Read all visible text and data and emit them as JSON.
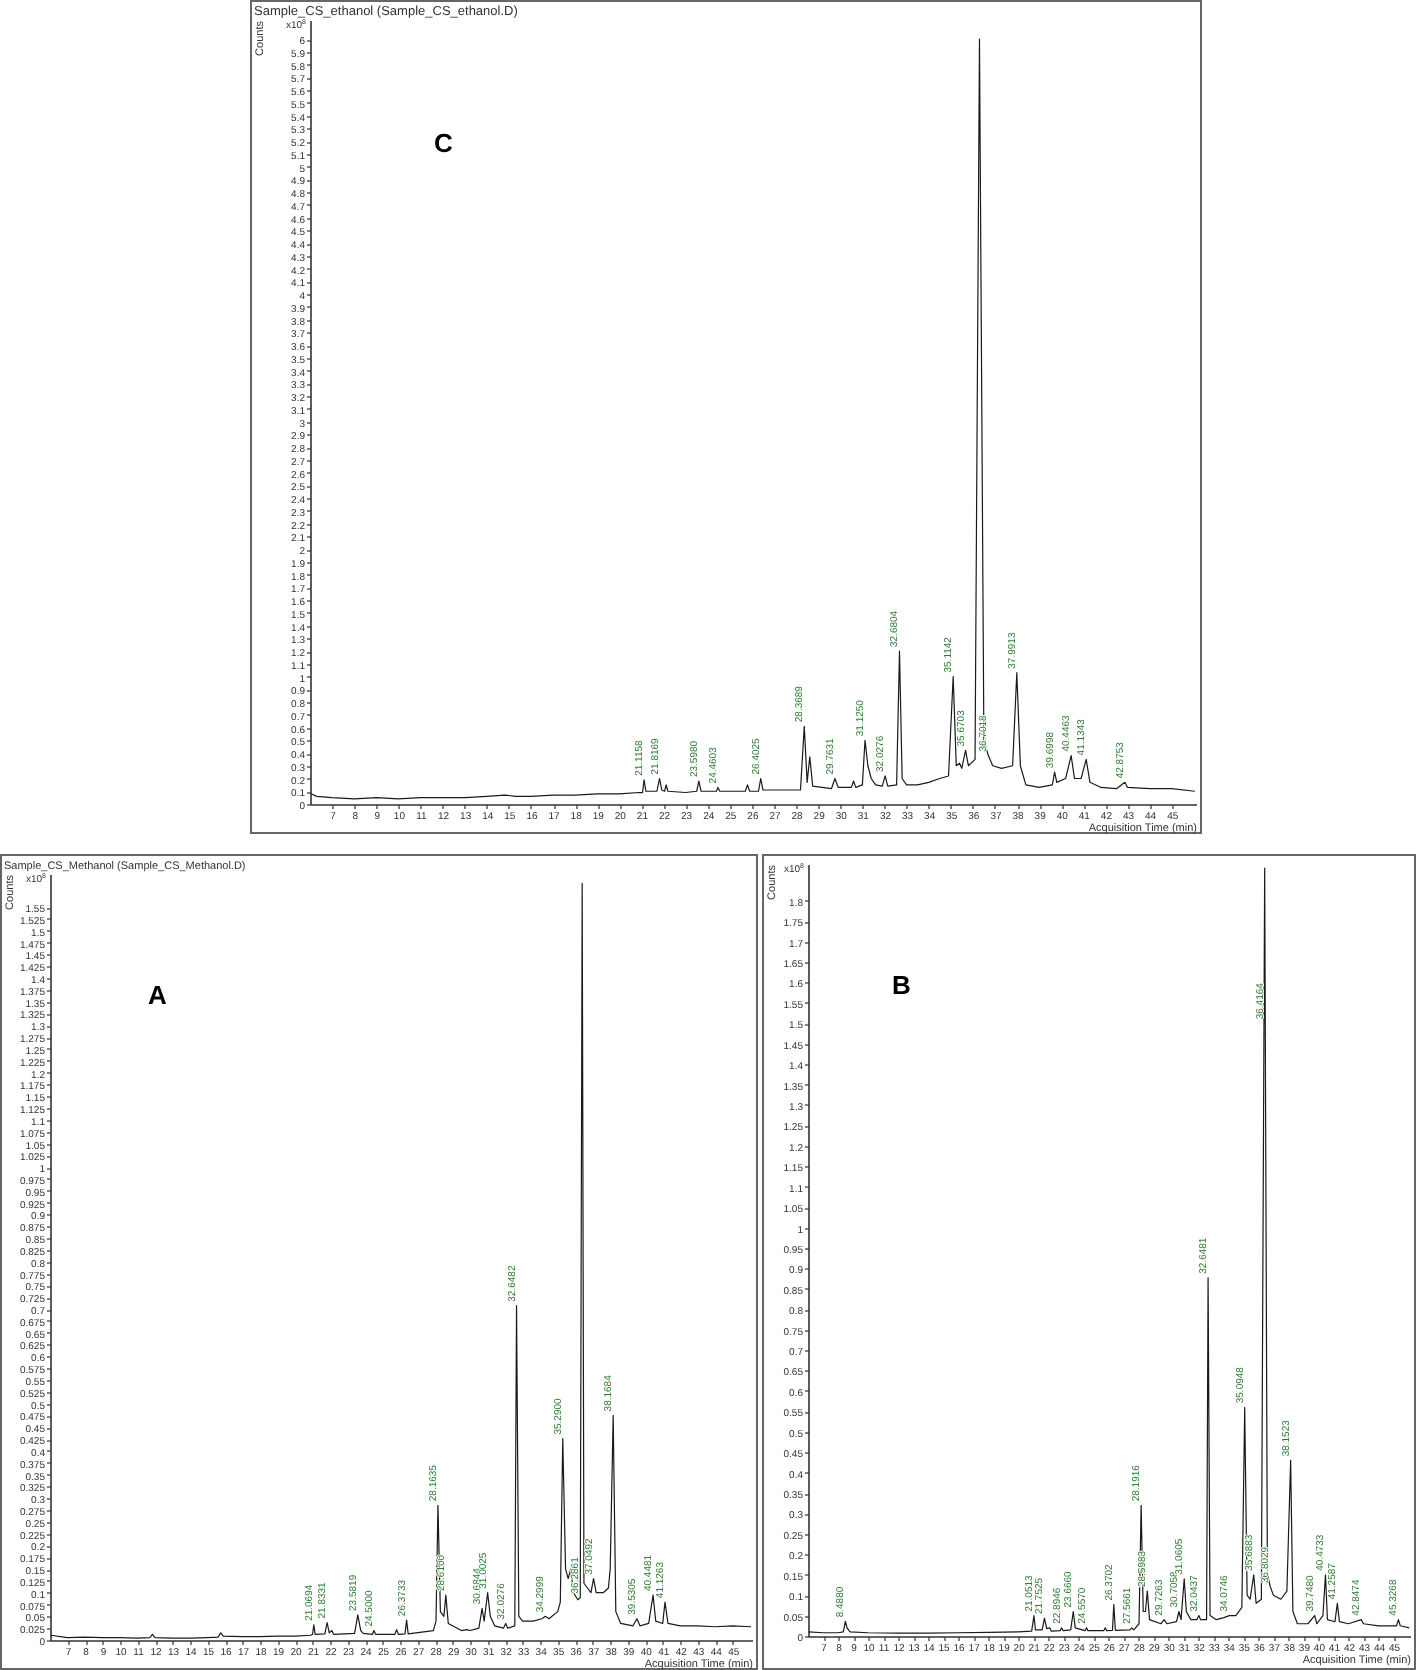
{
  "chart_data": [
    {
      "type": "line",
      "title": "Sample_CS_ethanol (Sample_CS_ethanol.D)",
      "xlabel": "Acquisition Time (min)",
      "ylabel": "Counts",
      "annotations": [
        "x10$^{8}$",
        "C",
        {
          "text": "21.1158",
          "x": 21.12,
          "y": 0.19
        },
        {
          "text": "21.8169",
          "x": 21.82,
          "y": 0.2
        },
        {
          "text": "23.5980",
          "x": 23.6,
          "y": 0.18
        },
        {
          "text": "24.4603",
          "x": 24.46,
          "y": 0.13
        },
        {
          "text": "26.4025",
          "x": 26.4,
          "y": 0.2
        },
        {
          "text": "28.3689",
          "x": 28.37,
          "y": 0.61
        },
        {
          "text": "29.7631",
          "x": 29.76,
          "y": 0.2
        },
        {
          "text": "31.1250",
          "x": 31.12,
          "y": 0.5
        },
        {
          "text": "32.0276",
          "x": 32.03,
          "y": 0.22
        },
        {
          "text": "32.6804",
          "x": 32.68,
          "y": 1.2
        },
        {
          "text": "35.1142",
          "x": 35.11,
          "y": 1.0
        },
        {
          "text": "35.6703",
          "x": 35.67,
          "y": 0.42
        },
        {
          "text": "36.7018",
          "x": 36.7,
          "y": 0.38
        },
        {
          "text": "37.9913",
          "x": 37.99,
          "y": 1.03
        },
        {
          "text": "39.6998",
          "x": 39.7,
          "y": 0.25
        },
        {
          "text": "40.4463",
          "x": 40.45,
          "y": 0.38
        },
        {
          "text": "41.1343",
          "x": 41.13,
          "y": 0.35
        },
        {
          "text": "42.8753",
          "x": 42.88,
          "y": 0.17
        }
      ],
      "x": [
        6.05,
        6.3,
        7,
        8,
        9,
        10,
        11,
        12,
        13,
        14,
        14.8,
        15.3,
        16,
        17,
        18,
        19,
        20,
        20.9,
        21.05,
        21.12,
        21.2,
        21.7,
        21.82,
        21.92,
        22.05,
        22.12,
        22.2,
        23,
        23.5,
        23.6,
        23.7,
        24.4,
        24.46,
        24.55,
        25.7,
        25.8,
        25.9,
        26.3,
        26.4,
        26.5,
        28.2,
        28.37,
        28.5,
        28.62,
        28.75,
        29.6,
        29.76,
        29.9,
        30.5,
        30.6,
        30.7,
        31.0,
        31.12,
        31.25,
        31.4,
        31.6,
        31.9,
        32.03,
        32.15,
        32.55,
        32.68,
        32.8,
        33,
        33.5,
        34,
        34.5,
        34.9,
        35.11,
        35.25,
        35.4,
        35.5,
        35.67,
        35.8,
        36.1,
        36.3,
        36.5,
        36.7,
        36.9,
        37.3,
        37.8,
        37.99,
        38.15,
        38.4,
        39,
        39.6,
        39.7,
        39.8,
        40.2,
        40.45,
        40.6,
        40.9,
        41.13,
        41.3,
        41.8,
        42.5,
        42.88,
        43,
        44,
        45,
        46.05
      ],
      "series": [
        {
          "color": "#1a1a1a",
          "values": [
            0.08,
            0.06,
            0.05,
            0.04,
            0.05,
            0.04,
            0.05,
            0.05,
            0.05,
            0.06,
            0.07,
            0.06,
            0.06,
            0.07,
            0.07,
            0.08,
            0.08,
            0.09,
            0.09,
            0.19,
            0.1,
            0.1,
            0.2,
            0.11,
            0.1,
            0.15,
            0.1,
            0.09,
            0.1,
            0.18,
            0.1,
            0.1,
            0.13,
            0.1,
            0.1,
            0.15,
            0.1,
            0.1,
            0.2,
            0.11,
            0.11,
            0.61,
            0.17,
            0.37,
            0.14,
            0.12,
            0.2,
            0.13,
            0.13,
            0.18,
            0.13,
            0.15,
            0.5,
            0.3,
            0.2,
            0.15,
            0.14,
            0.22,
            0.14,
            0.15,
            1.2,
            0.2,
            0.15,
            0.15,
            0.17,
            0.2,
            0.22,
            1.0,
            0.3,
            0.32,
            0.28,
            0.42,
            0.3,
            0.35,
            6.0,
            0.5,
            0.38,
            0.3,
            0.28,
            0.3,
            1.03,
            0.3,
            0.15,
            0.13,
            0.15,
            0.25,
            0.17,
            0.2,
            0.38,
            0.2,
            0.2,
            0.35,
            0.17,
            0.13,
            0.12,
            0.17,
            0.13,
            0.12,
            0.12,
            0.1
          ]
        }
      ],
      "xlim": [
        6,
        46.1
      ],
      "xticks": [
        7,
        8,
        9,
        10,
        11,
        12,
        13,
        14,
        15,
        16,
        17,
        18,
        19,
        20,
        21,
        22,
        23,
        24,
        25,
        26,
        27,
        28,
        29,
        30,
        31,
        32,
        33,
        34,
        35,
        36,
        37,
        38,
        39,
        40,
        41,
        42,
        43,
        44,
        45
      ],
      "ylim": [
        0,
        6.15
      ],
      "yticks": [
        0,
        0.1,
        0.2,
        0.3,
        0.4,
        0.5,
        0.6,
        0.7,
        0.8,
        0.9,
        1,
        1.1,
        1.2,
        1.3,
        1.4,
        1.5,
        1.6,
        1.7,
        1.8,
        1.9,
        2,
        2.1,
        2.2,
        2.3,
        2.4,
        2.5,
        2.6,
        2.7,
        2.8,
        2.9,
        3,
        3.1,
        3.2,
        3.3,
        3.4,
        3.5,
        3.6,
        3.7,
        3.8,
        3.9,
        4,
        4.1,
        4.2,
        4.3,
        4.4,
        4.5,
        4.6,
        4.7,
        4.8,
        4.9,
        5,
        5.1,
        5.2,
        5.3,
        5.4,
        5.5,
        5.6,
        5.7,
        5.8,
        5.9,
        6
      ]
    },
    {
      "type": "line",
      "title": "Sample_CS_Methanol (Sample_CS_Methanol.D)",
      "xlabel": "Acquisition Time (min)",
      "ylabel": "Counts",
      "annotations": [
        "x10$^{8}$",
        "A",
        {
          "text": "21.0694",
          "x": 21.07,
          "y": 0.032
        },
        {
          "text": "21.8331",
          "x": 21.83,
          "y": 0.037
        },
        {
          "text": "23.5819",
          "x": 23.58,
          "y": 0.053
        },
        {
          "text": "24.5000",
          "x": 24.5,
          "y": 0.02
        },
        {
          "text": "26.3733",
          "x": 26.37,
          "y": 0.042
        },
        {
          "text": "28.1635",
          "x": 28.16,
          "y": 0.285
        },
        {
          "text": "28.6100",
          "x": 28.61,
          "y": 0.095
        },
        {
          "text": "30.6844",
          "x": 30.68,
          "y": 0.067
        },
        {
          "text": "31.0025",
          "x": 31.0,
          "y": 0.1
        },
        {
          "text": "32.0276",
          "x": 32.03,
          "y": 0.035
        },
        {
          "text": "32.6482",
          "x": 32.65,
          "y": 0.707
        },
        {
          "text": "34.2999",
          "x": 34.3,
          "y": 0.05
        },
        {
          "text": "35.2900",
          "x": 35.29,
          "y": 0.426
        },
        {
          "text": "36.2861",
          "x": 36.29,
          "y": 0.09
        },
        {
          "text": "37.0492",
          "x": 37.05,
          "y": 0.13
        },
        {
          "text": "38.1684",
          "x": 38.17,
          "y": 0.475
        },
        {
          "text": "39.5305",
          "x": 39.53,
          "y": 0.045
        },
        {
          "text": "40.4481",
          "x": 40.45,
          "y": 0.095
        },
        {
          "text": "41.1263",
          "x": 41.13,
          "y": 0.08
        }
      ],
      "x": [
        6.05,
        7,
        8,
        9,
        10,
        11,
        11.7,
        11.85,
        12,
        13,
        14,
        15,
        15.6,
        15.75,
        15.9,
        17,
        18,
        19,
        20,
        20.9,
        21.0,
        21.07,
        21.15,
        21.7,
        21.83,
        21.95,
        22.1,
        22.2,
        23.4,
        23.58,
        23.75,
        23.9,
        24.42,
        24.5,
        24.6,
        25.7,
        25.8,
        25.9,
        26.28,
        26.37,
        26.46,
        27.9,
        28.05,
        28.16,
        28.3,
        28.5,
        28.61,
        28.75,
        29.5,
        29.8,
        30.0,
        30.5,
        30.68,
        30.8,
        31.0,
        31.15,
        31.4,
        31.9,
        32.03,
        32.15,
        32.55,
        32.65,
        32.78,
        33,
        33.6,
        34.1,
        34.3,
        34.5,
        35.0,
        35.15,
        35.29,
        35.45,
        35.6,
        35.75,
        35.9,
        36.15,
        36.29,
        36.4,
        36.5,
        36.7,
        36.9,
        37.05,
        37.2,
        37.6,
        37.9,
        38.0,
        38.17,
        38.32,
        38.6,
        39.3,
        39.53,
        39.7,
        40.2,
        40.3,
        40.45,
        40.6,
        41.0,
        41.13,
        41.3,
        42,
        43,
        44,
        45,
        46.05
      ],
      "series": [
        {
          "color": "#1a1a1a",
          "values": [
            0.01,
            0.005,
            0.006,
            0.005,
            0.005,
            0.004,
            0.005,
            0.012,
            0.005,
            0.004,
            0.004,
            0.005,
            0.006,
            0.015,
            0.008,
            0.007,
            0.007,
            0.008,
            0.008,
            0.01,
            0.012,
            0.032,
            0.012,
            0.013,
            0.037,
            0.015,
            0.02,
            0.012,
            0.014,
            0.053,
            0.02,
            0.014,
            0.012,
            0.02,
            0.012,
            0.012,
            0.022,
            0.012,
            0.013,
            0.042,
            0.013,
            0.02,
            0.04,
            0.285,
            0.06,
            0.05,
            0.095,
            0.035,
            0.02,
            0.022,
            0.02,
            0.025,
            0.067,
            0.04,
            0.1,
            0.05,
            0.03,
            0.025,
            0.035,
            0.025,
            0.03,
            0.707,
            0.05,
            0.04,
            0.04,
            0.045,
            0.05,
            0.045,
            0.06,
            0.08,
            0.426,
            0.15,
            0.13,
            0.15,
            0.1,
            0.085,
            0.09,
            1.6,
            0.12,
            0.11,
            0.1,
            0.13,
            0.1,
            0.1,
            0.11,
            0.15,
            0.475,
            0.06,
            0.035,
            0.03,
            0.045,
            0.03,
            0.035,
            0.06,
            0.095,
            0.04,
            0.035,
            0.08,
            0.035,
            0.03,
            0.03,
            0.028,
            0.03,
            0.028
          ]
        }
      ],
      "xlim": [
        6,
        46.1
      ],
      "xticks": [
        7,
        8,
        9,
        10,
        11,
        12,
        13,
        14,
        15,
        16,
        17,
        18,
        19,
        20,
        21,
        22,
        23,
        24,
        25,
        26,
        27,
        28,
        29,
        30,
        31,
        32,
        33,
        34,
        35,
        36,
        37,
        38,
        39,
        40,
        41,
        42,
        43,
        44,
        45
      ],
      "ylim": [
        0,
        1.62
      ],
      "yticks": [
        0,
        0.025,
        0.05,
        0.075,
        0.1,
        0.125,
        0.15,
        0.175,
        0.2,
        0.225,
        0.25,
        0.275,
        0.3,
        0.325,
        0.35,
        0.375,
        0.4,
        0.425,
        0.45,
        0.475,
        0.5,
        0.525,
        0.55,
        0.575,
        0.6,
        0.625,
        0.65,
        0.675,
        0.7,
        0.725,
        0.75,
        0.775,
        0.8,
        0.825,
        0.85,
        0.875,
        0.9,
        0.925,
        0.95,
        0.975,
        1,
        1.025,
        1.05,
        1.075,
        1.1,
        1.125,
        1.15,
        1.175,
        1.2,
        1.225,
        1.25,
        1.275,
        1.3,
        1.325,
        1.35,
        1.375,
        1.4,
        1.425,
        1.45,
        1.475,
        1.5,
        1.525,
        1.55
      ]
    },
    {
      "type": "line",
      "xlabel": "Acquisition Time (min)",
      "ylabel": "Counts",
      "annotations": [
        "x10$^{8}$",
        "B",
        {
          "text": "8.4880",
          "x": 8.49,
          "y": 0.036
        },
        {
          "text": "21.0513",
          "x": 21.05,
          "y": 0.05
        },
        {
          "text": "21.7525",
          "x": 21.75,
          "y": 0.044
        },
        {
          "text": "22.8946",
          "x": 22.89,
          "y": 0.02
        },
        {
          "text": "23.6660",
          "x": 23.67,
          "y": 0.06
        },
        {
          "text": "24.5570",
          "x": 24.56,
          "y": 0.02
        },
        {
          "text": "26.3702",
          "x": 26.37,
          "y": 0.077
        },
        {
          "text": "27.5661",
          "x": 27.57,
          "y": 0.02
        },
        {
          "text": "28.1916",
          "x": 28.19,
          "y": 0.32
        },
        {
          "text": "28.5983",
          "x": 28.6,
          "y": 0.11
        },
        {
          "text": "29.7263",
          "x": 29.73,
          "y": 0.04
        },
        {
          "text": "30.7058",
          "x": 30.71,
          "y": 0.06
        },
        {
          "text": "31.0605",
          "x": 31.06,
          "y": 0.14
        },
        {
          "text": "32.0437",
          "x": 32.04,
          "y": 0.05
        },
        {
          "text": "32.6481",
          "x": 32.65,
          "y": 0.877
        },
        {
          "text": "34.0746",
          "x": 34.07,
          "y": 0.05
        },
        {
          "text": "35.0948",
          "x": 35.09,
          "y": 0.56
        },
        {
          "text": "35.6883",
          "x": 35.69,
          "y": 0.15
        },
        {
          "text": "36.4164",
          "x": 36.42,
          "y": 1.5
        },
        {
          "text": "36.8029",
          "x": 36.8,
          "y": 0.12
        },
        {
          "text": "38.1523",
          "x": 38.15,
          "y": 0.43
        },
        {
          "text": "39.7480",
          "x": 39.75,
          "y": 0.05
        },
        {
          "text": "40.4733",
          "x": 40.47,
          "y": 0.15
        },
        {
          "text": "41.2587",
          "x": 41.26,
          "y": 0.08
        },
        {
          "text": "42.8474",
          "x": 42.85,
          "y": 0.04
        },
        {
          "text": "45.3268",
          "x": 45.33,
          "y": 0.04
        }
      ],
      "x": [
        6.05,
        7,
        8,
        8.35,
        8.49,
        8.6,
        8.8,
        10,
        12,
        14,
        16,
        18,
        20,
        20.9,
        21.05,
        21.15,
        21.6,
        21.75,
        21.9,
        22.1,
        22.2,
        22.8,
        22.89,
        23.0,
        23.5,
        23.67,
        23.8,
        24.45,
        24.56,
        24.65,
        25.7,
        25.8,
        25.9,
        26.28,
        26.37,
        26.47,
        27.45,
        27.57,
        27.7,
        28.05,
        28.19,
        28.33,
        28.48,
        28.6,
        28.75,
        29.5,
        29.73,
        29.9,
        30.55,
        30.71,
        30.85,
        31.06,
        31.2,
        31.5,
        31.9,
        32.04,
        32.15,
        32.55,
        32.65,
        32.78,
        33.2,
        33.7,
        34.07,
        34.5,
        34.9,
        35.09,
        35.25,
        35.45,
        35.69,
        35.85,
        36.2,
        36.42,
        36.6,
        36.8,
        37.0,
        37.5,
        37.9,
        38.15,
        38.3,
        38.6,
        39.3,
        39.75,
        39.9,
        40.3,
        40.47,
        40.6,
        41.1,
        41.26,
        41.4,
        42,
        42.85,
        43,
        44,
        45.2,
        45.33,
        45.45,
        46.05
      ],
      "series": [
        {
          "color": "#1a1a1a",
          "values": [
            0.01,
            0.008,
            0.008,
            0.01,
            0.036,
            0.02,
            0.01,
            0.008,
            0.007,
            0.007,
            0.008,
            0.009,
            0.01,
            0.012,
            0.05,
            0.015,
            0.015,
            0.044,
            0.018,
            0.02,
            0.012,
            0.013,
            0.02,
            0.013,
            0.015,
            0.06,
            0.02,
            0.013,
            0.02,
            0.013,
            0.013,
            0.02,
            0.013,
            0.014,
            0.077,
            0.014,
            0.015,
            0.02,
            0.015,
            0.03,
            0.32,
            0.06,
            0.06,
            0.11,
            0.04,
            0.03,
            0.04,
            0.03,
            0.035,
            0.06,
            0.04,
            0.14,
            0.06,
            0.04,
            0.04,
            0.05,
            0.04,
            0.04,
            0.877,
            0.05,
            0.04,
            0.045,
            0.05,
            0.05,
            0.07,
            0.56,
            0.1,
            0.09,
            0.15,
            0.08,
            0.09,
            1.88,
            0.15,
            0.12,
            0.1,
            0.09,
            0.11,
            0.43,
            0.06,
            0.03,
            0.03,
            0.05,
            0.03,
            0.05,
            0.15,
            0.04,
            0.035,
            0.08,
            0.035,
            0.03,
            0.04,
            0.03,
            0.025,
            0.025,
            0.04,
            0.025,
            0.02
          ]
        }
      ],
      "xlim": [
        6,
        46.1
      ],
      "xticks": [
        7,
        8,
        9,
        10,
        11,
        12,
        13,
        14,
        15,
        16,
        17,
        18,
        19,
        20,
        21,
        22,
        23,
        24,
        25,
        26,
        27,
        28,
        29,
        30,
        31,
        32,
        33,
        34,
        35,
        36,
        37,
        38,
        39,
        40,
        41,
        42,
        43,
        44,
        45
      ],
      "ylim": [
        0,
        1.89
      ],
      "yticks": [
        0,
        0.05,
        0.1,
        0.15,
        0.2,
        0.25,
        0.3,
        0.35,
        0.4,
        0.45,
        0.5,
        0.55,
        0.6,
        0.65,
        0.7,
        0.75,
        0.8,
        0.85,
        0.9,
        0.95,
        1,
        1.05,
        1.1,
        1.15,
        1.2,
        1.25,
        1.3,
        1.35,
        1.4,
        1.45,
        1.5,
        1.55,
        1.6,
        1.65,
        1.7,
        1.75,
        1.8
      ]
    }
  ]
}
